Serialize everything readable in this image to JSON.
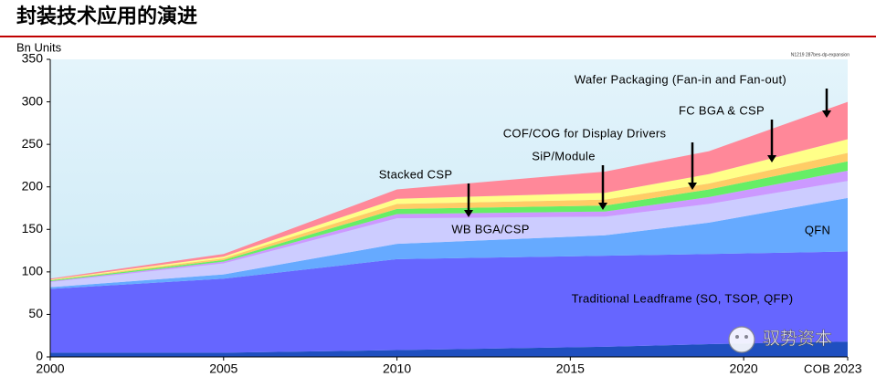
{
  "chart_data": {
    "type": "stacked_area",
    "title": "封装技术应用的演进",
    "y_label": "Bn Units",
    "source_note": "N1219 287bes-dp-expansion",
    "watermark": "驭势资本",
    "x": [
      2000,
      2005,
      2010,
      2016,
      2019,
      2023
    ],
    "xlim": [
      2000,
      2023
    ],
    "xticks": [
      2000,
      2005,
      2010,
      2015,
      2020,
      2023
    ],
    "ylim": [
      0,
      350
    ],
    "yticks": [
      0,
      50,
      100,
      150,
      200,
      250,
      300,
      350
    ],
    "series": [
      {
        "name": "COB",
        "color": "#1f4fbf",
        "values": [
          5,
          5,
          8,
          12,
          15,
          18
        ]
      },
      {
        "name": "Traditional Leadframe (SO, TSOP, QFP)",
        "color": "#6666ff",
        "values": [
          75,
          87,
          107,
          107,
          106,
          106
        ]
      },
      {
        "name": "QFN",
        "color": "#66aaff",
        "values": [
          2,
          5,
          18,
          24,
          37,
          63
        ]
      },
      {
        "name": "WB BGA/CSP",
        "color": "#ccccff",
        "values": [
          6,
          13,
          30,
          22,
          22,
          20
        ]
      },
      {
        "name": "SiP/Module",
        "color": "#cc99ff",
        "values": [
          1,
          2,
          5,
          6,
          8,
          12
        ]
      },
      {
        "name": "Stacked CSP",
        "color": "#66ee66",
        "values": [
          1,
          2,
          6,
          7,
          9,
          11
        ]
      },
      {
        "name": "COF/COG for Display Drivers",
        "color": "#ffcc66",
        "values": [
          0.5,
          2,
          6,
          7,
          7,
          10
        ]
      },
      {
        "name": "FC BGA & CSP",
        "color": "#ffff88",
        "values": [
          0.5,
          2,
          6,
          8,
          11,
          16
        ]
      },
      {
        "name": "Wafer Packaging (Fan-in and Fan-out)",
        "color": "#ff8899",
        "values": [
          1,
          3,
          11,
          25,
          27,
          44
        ]
      }
    ]
  }
}
